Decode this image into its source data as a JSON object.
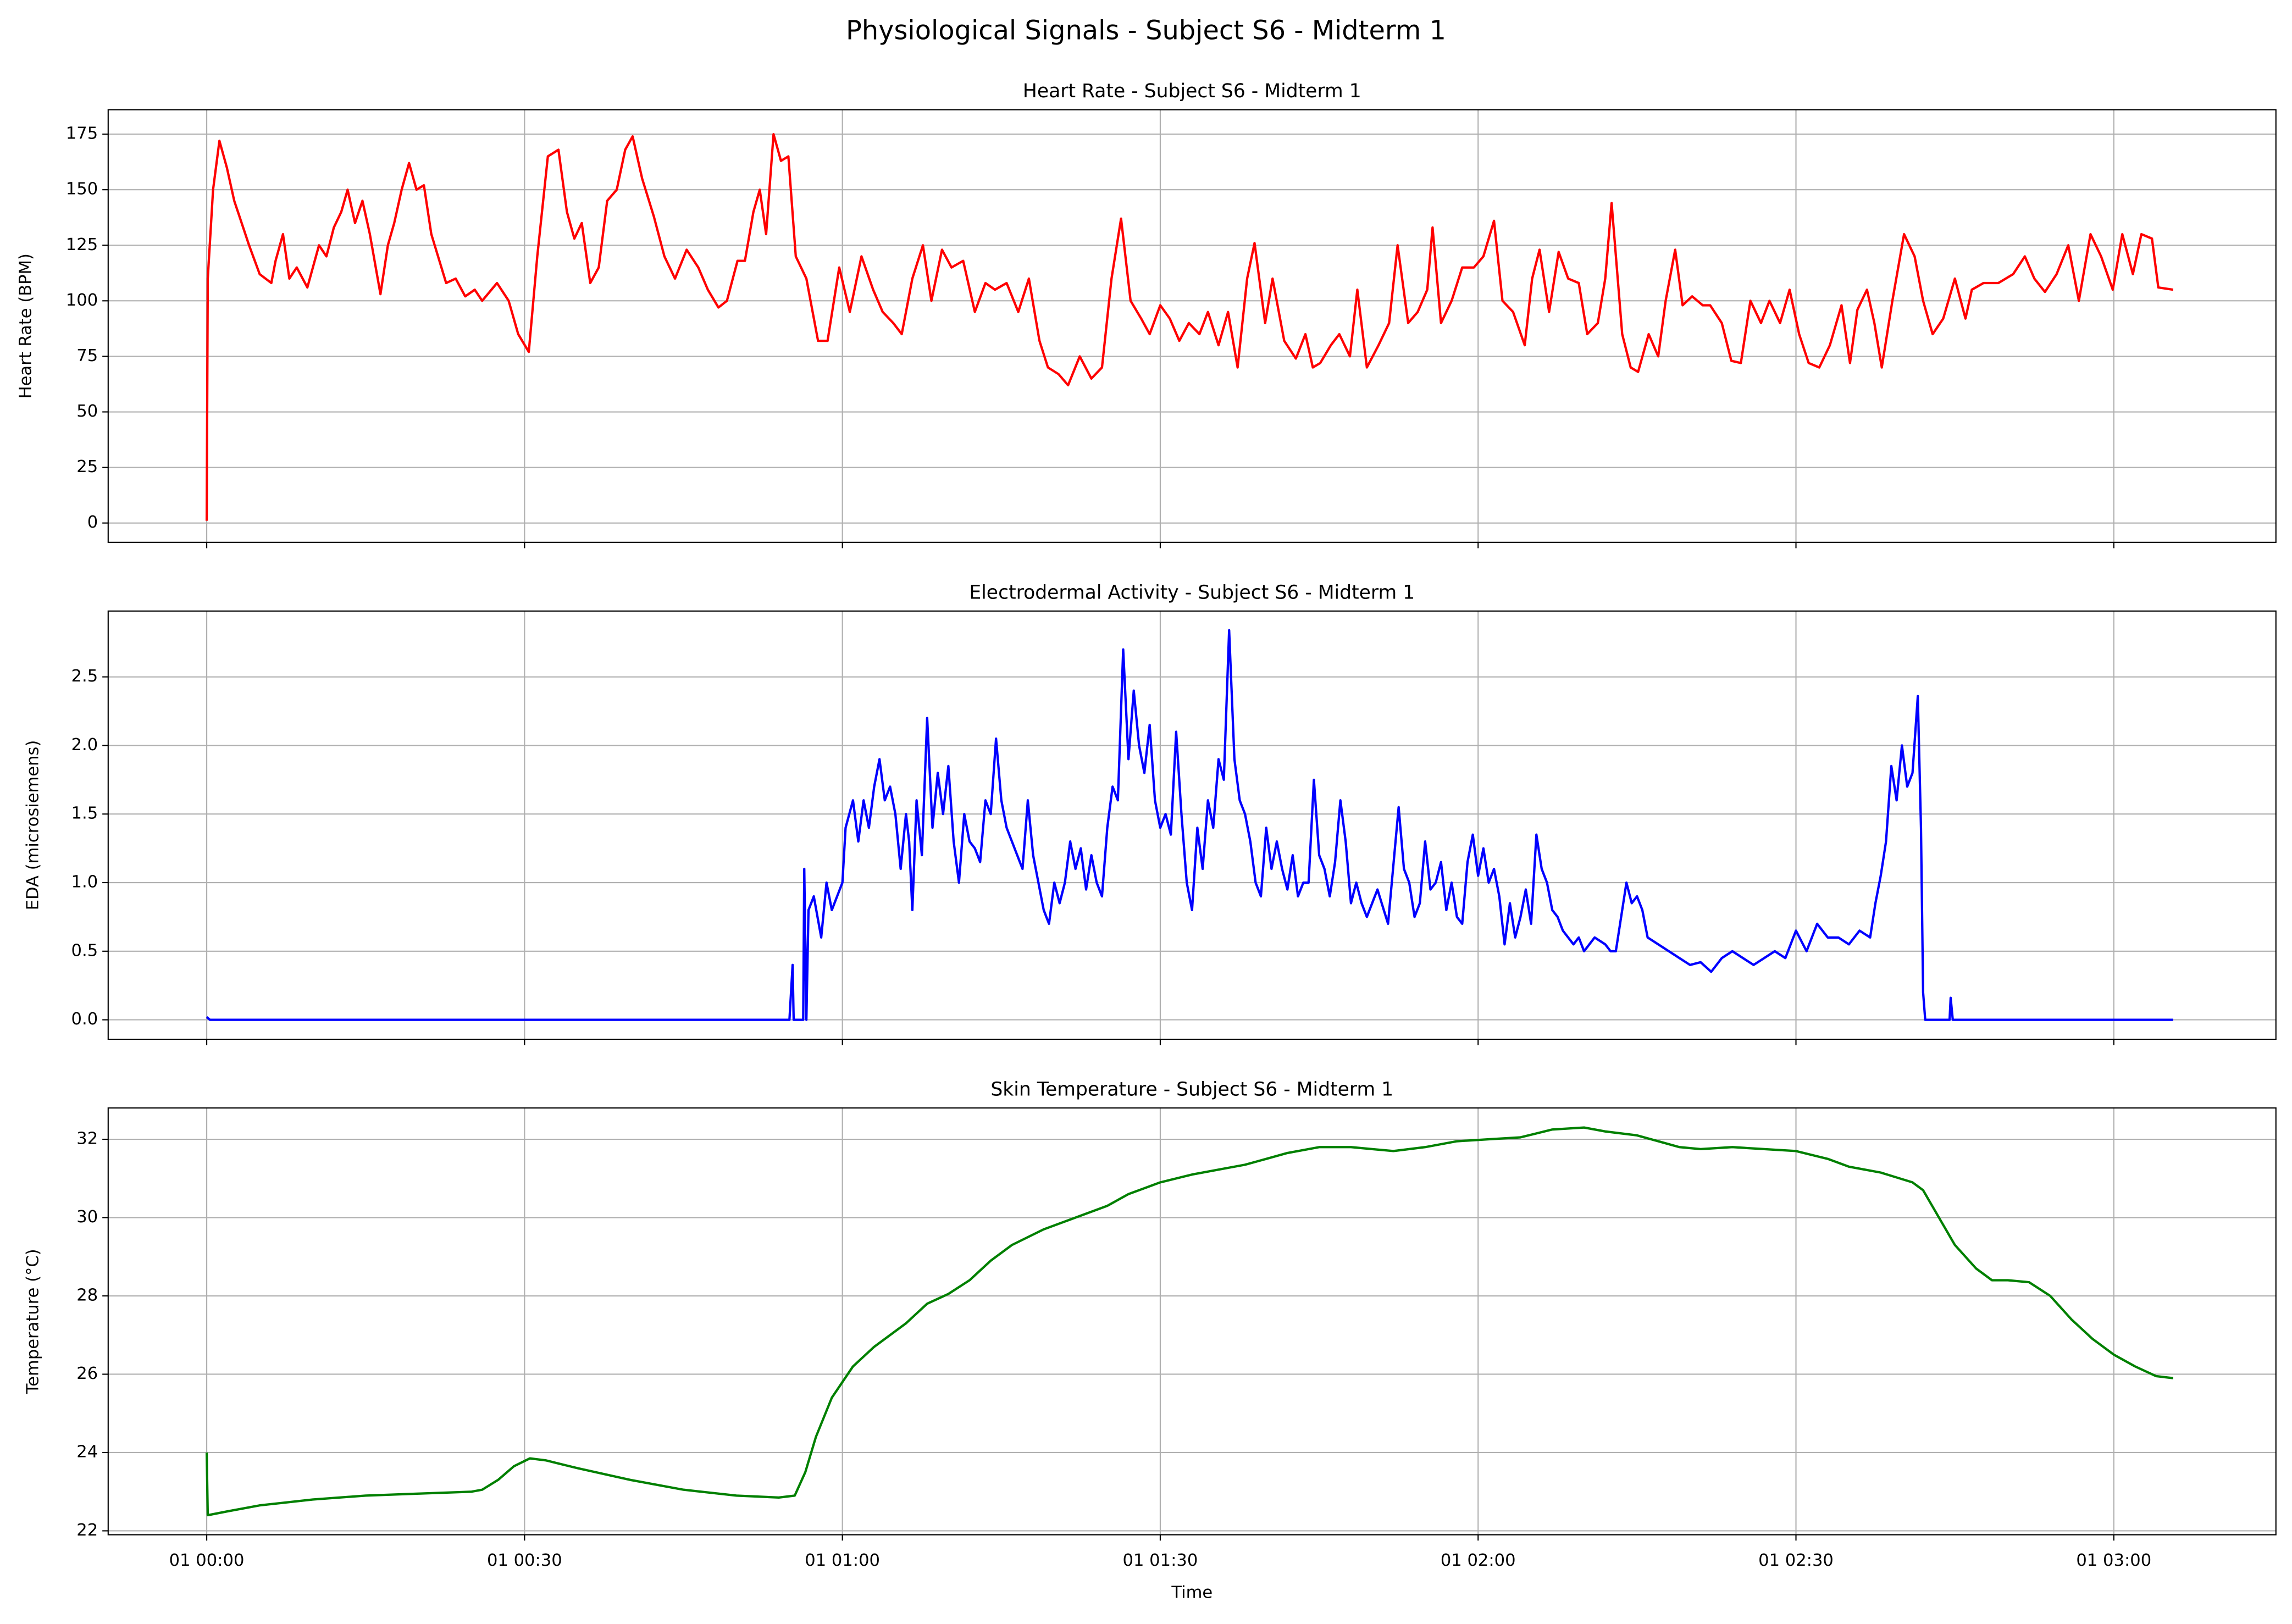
{
  "title": "Physiological Signals - Subject S6 - Midterm 1",
  "chart_data": [
    {
      "type": "line",
      "title": "Heart Rate - Subject S6 - Midterm 1",
      "ylabel": "Heart Rate (BPM)",
      "color": "#ff0000",
      "grid": true,
      "xlim": [
        -9.3,
        195.3
      ],
      "ylim": [
        -8.7,
        186
      ],
      "yticks": [
        0,
        25,
        50,
        75,
        100,
        125,
        150,
        175
      ],
      "x": [
        0,
        0.1,
        0.6,
        1.2,
        1.9,
        2.6,
        3.3,
        4.0,
        5.0,
        6.1,
        6.5,
        7.2,
        7.8,
        8.5,
        9.5,
        10.6,
        11.3,
        12.0,
        12.7,
        13.3,
        14.0,
        14.7,
        15.4,
        16.4,
        17.1,
        17.7,
        18.4,
        19.1,
        19.8,
        20.5,
        21.2,
        22.6,
        23.5,
        24.4,
        25.3,
        26.0,
        27.4,
        28.5,
        29.4,
        30.4,
        31.2,
        32.2,
        33.2,
        34.0,
        34.7,
        35.4,
        36.2,
        37.0,
        37.8,
        38.7,
        39.5,
        40.2,
        41.1,
        42.2,
        43.2,
        44.2,
        45.3,
        46.4,
        47.3,
        48.3,
        49.1,
        50.1,
        50.8,
        51.6,
        52.2,
        52.8,
        53.5,
        54.2,
        54.9,
        55.6,
        56.6,
        57.7,
        58.6,
        59.7,
        60.7,
        61.8,
        62.9,
        63.8,
        64.8,
        65.6,
        66.6,
        67.6,
        68.4,
        69.4,
        70.3,
        71.4,
        72.5,
        73.5,
        74.4,
        75.5,
        76.6,
        77.6,
        78.6,
        79.4,
        80.4,
        81.3,
        82.4,
        83.5,
        84.5,
        85.4,
        86.3,
        87.2,
        88.2,
        89.0,
        90.0,
        90.9,
        91.8,
        92.7,
        93.7,
        94.5,
        95.5,
        96.4,
        97.3,
        98.2,
        98.9,
        99.9,
        100.6,
        101.7,
        102.8,
        103.7,
        104.4,
        105.1,
        106.1,
        106.9,
        107.9,
        108.6,
        109.5,
        110.6,
        111.6,
        112.4,
        113.4,
        114.3,
        115.2,
        115.7,
        116.5,
        117.5,
        118.5,
        119.6,
        120.5,
        121.5,
        122.3,
        123.3,
        124.4,
        125.1,
        125.8,
        126.7,
        127.6,
        128.5,
        129.5,
        130.3,
        131.3,
        132.0,
        132.6,
        133.6,
        134.4,
        135.1,
        136.1,
        137.0,
        137.7,
        138.6,
        139.3,
        140.2,
        141.2,
        141.9,
        143.0,
        143.9,
        144.8,
        145.7,
        146.7,
        147.5,
        148.5,
        149.4,
        150.3,
        151.2,
        152.2,
        153.2,
        154.3,
        155.1,
        155.8,
        156.7,
        157.4,
        158.1,
        159.1,
        160.2,
        161.2,
        162.0,
        162.9,
        163.9,
        165.0,
        166.0,
        166.6,
        167.7,
        169.1,
        170.5,
        171.6,
        172.5,
        173.5,
        174.6,
        175.7,
        176.7,
        177.8,
        178.8,
        179.9,
        180.8,
        181.8,
        182.6,
        183.6,
        184.2,
        185.6
      ],
      "values": [
        1,
        110,
        150,
        172,
        160,
        145,
        135,
        125,
        112,
        108,
        118,
        130,
        110,
        115,
        106,
        125,
        120,
        133,
        140,
        150,
        135,
        145,
        130,
        103,
        125,
        135,
        150,
        162,
        150,
        152,
        130,
        108,
        110,
        102,
        105,
        100,
        108,
        100,
        85,
        77,
        120,
        165,
        168,
        140,
        128,
        135,
        108,
        115,
        145,
        150,
        168,
        174,
        155,
        138,
        120,
        110,
        123,
        115,
        105,
        97,
        100,
        118,
        118,
        140,
        150,
        130,
        175,
        163,
        165,
        120,
        110,
        82,
        82,
        115,
        95,
        120,
        105,
        95,
        90,
        85,
        110,
        125,
        100,
        123,
        115,
        118,
        95,
        108,
        105,
        108,
        95,
        110,
        82,
        70,
        67,
        62,
        75,
        65,
        70,
        110,
        137,
        100,
        92,
        85,
        98,
        92,
        82,
        90,
        85,
        95,
        80,
        95,
        70,
        110,
        126,
        90,
        110,
        82,
        74,
        85,
        70,
        72,
        80,
        85,
        75,
        105,
        70,
        80,
        90,
        125,
        90,
        95,
        105,
        133,
        90,
        100,
        115,
        115,
        120,
        136,
        100,
        95,
        80,
        110,
        123,
        95,
        122,
        110,
        108,
        85,
        90,
        110,
        144,
        85,
        70,
        68,
        85,
        75,
        100,
        123,
        98,
        102,
        98,
        98,
        90,
        73,
        72,
        100,
        90,
        100,
        90,
        105,
        85,
        72,
        70,
        80,
        98,
        72,
        96,
        105,
        90,
        70,
        100,
        130,
        120,
        100,
        85,
        92,
        110,
        92,
        105,
        108,
        108,
        112,
        120,
        110,
        104,
        112,
        125,
        100,
        130,
        120,
        105,
        130,
        112,
        130,
        128,
        106,
        105
      ]
    },
    {
      "type": "line",
      "title": "Electrodermal Activity - Subject S6 - Midterm 1",
      "ylabel": "EDA (microsiemens)",
      "color": "#0000ff",
      "grid": true,
      "xlim": [
        -9.3,
        195.3
      ],
      "ylim": [
        -0.142,
        2.98
      ],
      "yticks": [
        {
          "value": 0,
          "label": "0.0"
        },
        0.5,
        {
          "value": 1,
          "label": "1.0"
        },
        1.5,
        {
          "value": 2,
          "label": "2.0"
        },
        2.5
      ],
      "x": [
        0,
        0.3,
        55,
        55.3,
        55.4,
        56.3,
        56.4,
        56.6,
        56.8,
        57.3,
        58,
        58.5,
        59,
        59.5,
        60,
        60.3,
        61,
        61.5,
        62,
        62.5,
        63,
        63.5,
        64,
        64.5,
        65,
        65.5,
        66,
        66.3,
        66.6,
        67,
        67.5,
        68,
        68.5,
        69,
        69.5,
        70,
        70.5,
        71,
        71.5,
        72,
        72.5,
        73,
        73.5,
        74,
        74.5,
        75,
        75.5,
        76,
        76.5,
        77,
        77.5,
        78,
        78.5,
        79,
        79.5,
        80,
        80.5,
        81,
        81.5,
        82,
        82.5,
        83,
        83.5,
        84,
        84.5,
        85,
        85.5,
        86,
        86.5,
        87,
        87.5,
        88,
        88.5,
        89,
        89.5,
        90,
        90.5,
        91,
        91.5,
        92,
        92.5,
        93,
        93.5,
        94,
        94.5,
        95,
        95.5,
        96,
        96.5,
        97,
        97.5,
        98,
        98.5,
        99,
        99.5,
        100,
        100.5,
        101,
        101.5,
        102,
        102.5,
        103,
        103.5,
        104,
        104.5,
        105,
        105.5,
        106,
        106.5,
        107,
        107.5,
        108,
        108.5,
        109,
        109.5,
        110,
        110.5,
        111.5,
        112.5,
        113,
        113.5,
        114,
        114.5,
        115,
        115.5,
        116,
        116.5,
        117,
        117.5,
        118,
        118.5,
        119,
        119.5,
        120,
        120.5,
        121,
        121.5,
        122,
        122.5,
        123,
        123.5,
        124,
        124.5,
        125,
        125.5,
        126,
        126.5,
        127,
        127.5,
        128,
        129,
        129.5,
        130,
        131,
        132,
        132.5,
        133,
        134,
        134.5,
        135,
        135.5,
        136,
        137,
        138,
        139,
        140,
        141,
        142,
        143,
        144,
        145,
        146,
        147,
        148,
        149,
        150,
        151,
        152,
        153,
        154,
        155,
        156,
        157,
        157.5,
        158,
        158.5,
        159,
        159.5,
        160,
        160.5,
        161,
        161.5,
        161.8,
        162,
        162.2,
        164.5,
        164.6,
        164.8,
        185.6
      ],
      "values": [
        0.02,
        0,
        0,
        0.4,
        0,
        0,
        1.1,
        0,
        0.8,
        0.9,
        0.6,
        1.0,
        0.8,
        0.9,
        1.0,
        1.4,
        1.6,
        1.3,
        1.6,
        1.4,
        1.7,
        1.9,
        1.6,
        1.7,
        1.5,
        1.1,
        1.5,
        1.3,
        0.8,
        1.6,
        1.2,
        2.2,
        1.4,
        1.8,
        1.5,
        1.85,
        1.3,
        1.0,
        1.5,
        1.3,
        1.25,
        1.15,
        1.6,
        1.5,
        2.05,
        1.6,
        1.4,
        1.3,
        1.2,
        1.1,
        1.6,
        1.2,
        1.0,
        0.8,
        0.7,
        1.0,
        0.85,
        1.0,
        1.3,
        1.1,
        1.25,
        0.95,
        1.2,
        1.0,
        0.9,
        1.4,
        1.7,
        1.6,
        2.7,
        1.9,
        2.4,
        2.0,
        1.8,
        2.15,
        1.6,
        1.4,
        1.5,
        1.35,
        2.1,
        1.5,
        1.0,
        0.8,
        1.4,
        1.1,
        1.6,
        1.4,
        1.9,
        1.75,
        2.84,
        1.9,
        1.6,
        1.5,
        1.3,
        1.0,
        0.9,
        1.4,
        1.1,
        1.3,
        1.1,
        0.95,
        1.2,
        0.9,
        1.0,
        1.0,
        1.75,
        1.2,
        1.1,
        0.9,
        1.15,
        1.6,
        1.3,
        0.85,
        1.0,
        0.85,
        0.75,
        0.85,
        0.95,
        0.7,
        1.55,
        1.1,
        1.0,
        0.75,
        0.85,
        1.3,
        0.95,
        1.0,
        1.15,
        0.8,
        1.0,
        0.75,
        0.7,
        1.15,
        1.35,
        1.05,
        1.25,
        1.0,
        1.1,
        0.9,
        0.55,
        0.85,
        0.6,
        0.75,
        0.95,
        0.7,
        1.35,
        1.1,
        1.0,
        0.8,
        0.75,
        0.65,
        0.55,
        0.6,
        0.5,
        0.6,
        0.55,
        0.5,
        0.5,
        1.0,
        0.85,
        0.9,
        0.8,
        0.6,
        0.55,
        0.5,
        0.45,
        0.4,
        0.42,
        0.35,
        0.45,
        0.5,
        0.45,
        0.4,
        0.45,
        0.5,
        0.45,
        0.65,
        0.5,
        0.7,
        0.6,
        0.6,
        0.55,
        0.65,
        0.6,
        0.85,
        1.05,
        1.3,
        1.85,
        1.6,
        2.0,
        1.7,
        1.8,
        2.36,
        1.4,
        0.2,
        0,
        0,
        0.16,
        0,
        0
      ]
    },
    {
      "type": "line",
      "title": "Skin Temperature - Subject S6 - Midterm 1",
      "ylabel": "Temperature (°C)",
      "xlabel": "Time",
      "color": "#008000",
      "grid": true,
      "xlim": [
        -9.3,
        195.3
      ],
      "ylim": [
        21.9,
        32.8
      ],
      "yticks": [
        22,
        24,
        26,
        28,
        30,
        32
      ],
      "xticks": [
        {
          "value": 0,
          "label": "01 00:00"
        },
        {
          "value": 30,
          "label": "01 00:30"
        },
        {
          "value": 60,
          "label": "01 01:00"
        },
        {
          "value": 90,
          "label": "01 01:30"
        },
        {
          "value": 120,
          "label": "01 02:00"
        },
        {
          "value": 150,
          "label": "01 02:30"
        },
        {
          "value": 180,
          "label": "01 03:00"
        }
      ],
      "x": [
        0,
        0.1,
        2,
        5,
        10,
        15,
        20,
        25,
        26,
        27.5,
        29,
        30.5,
        32,
        35,
        40,
        45,
        50,
        54,
        55.5,
        56.5,
        57.5,
        59,
        61,
        63,
        66,
        68,
        70,
        72,
        74,
        76,
        79,
        82,
        85,
        87,
        90,
        93,
        96,
        98,
        100,
        102,
        105,
        108,
        110,
        112,
        115,
        118,
        121,
        124,
        127,
        130,
        132,
        135,
        137,
        139,
        141,
        144,
        147,
        150,
        153,
        155,
        158,
        161,
        162,
        163.5,
        165,
        167,
        168.5,
        170,
        172,
        174,
        176,
        178,
        180,
        182,
        184,
        185.6
      ],
      "values": [
        24.0,
        22.4,
        22.5,
        22.65,
        22.8,
        22.9,
        22.95,
        23.0,
        23.05,
        23.3,
        23.65,
        23.85,
        23.8,
        23.6,
        23.3,
        23.05,
        22.9,
        22.85,
        22.9,
        23.5,
        24.4,
        25.4,
        26.2,
        26.7,
        27.3,
        27.8,
        28.05,
        28.4,
        28.9,
        29.3,
        29.7,
        30.0,
        30.3,
        30.6,
        30.9,
        31.1,
        31.25,
        31.35,
        31.5,
        31.65,
        31.8,
        31.8,
        31.75,
        31.7,
        31.8,
        31.95,
        32.0,
        32.05,
        32.25,
        32.3,
        32.2,
        32.1,
        31.95,
        31.8,
        31.75,
        31.8,
        31.75,
        31.7,
        31.5,
        31.3,
        31.15,
        30.9,
        30.7,
        30.0,
        29.3,
        28.7,
        28.4,
        28.4,
        28.35,
        28.0,
        27.4,
        26.9,
        26.5,
        26.2,
        25.95,
        25.9
      ]
    }
  ]
}
